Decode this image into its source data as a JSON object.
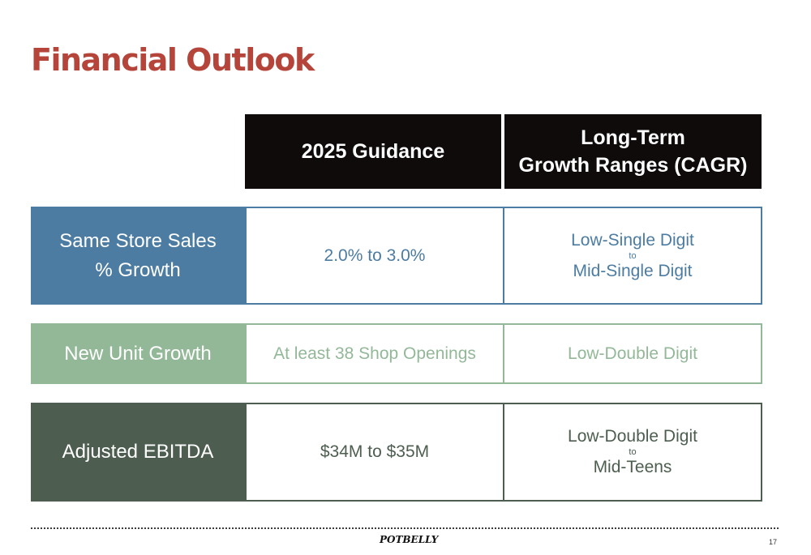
{
  "title": "Financial Outlook",
  "headers": {
    "guidance": "2025 Guidance",
    "longterm_line1": "Long-Term",
    "longterm_line2": "Growth Ranges (CAGR)"
  },
  "rows": [
    {
      "label_line1": "Same Store Sales",
      "label_line2": "% Growth",
      "guidance": "2.0% to 3.0%",
      "longterm_line1": "Low-Single Digit",
      "longterm_to": "to",
      "longterm_line2": "Mid-Single Digit"
    },
    {
      "label_line1": "New Unit Growth",
      "guidance": "At least 38 Shop Openings",
      "longterm_line1": "Low-Double Digit"
    },
    {
      "label_line1": "Adjusted EBITDA",
      "guidance": "$34M to $35M",
      "longterm_line1": "Low-Double Digit",
      "longterm_to": "to",
      "longterm_line2": "Mid-Teens"
    }
  ],
  "footer": {
    "logo_text": "POTBELLY",
    "page_number": "17"
  },
  "colors": {
    "title": "#b5453a",
    "header_bg": "#0f0b0b",
    "same_store": "#4c7ca2",
    "new_unit": "#93b898",
    "ebitda": "#4d5e50"
  }
}
